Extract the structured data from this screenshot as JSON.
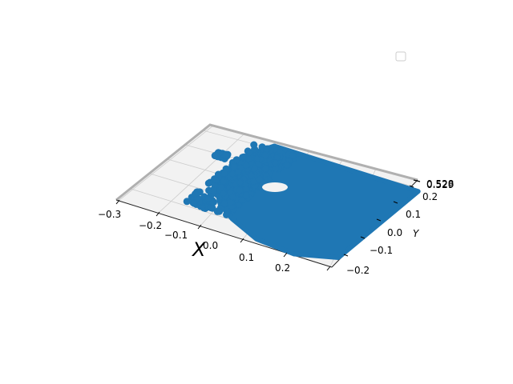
{
  "chart_data": {
    "type": "scatter",
    "projection": "3d",
    "title": "",
    "xlabel": "X",
    "ylabel": "Y",
    "zlabel": "",
    "x_ticks": [
      "−0.3",
      "−0.2",
      "−0.1",
      "0.0",
      "0.1",
      "0.2"
    ],
    "x_tick_values": [
      -0.3,
      -0.2,
      -0.1,
      0.0,
      0.1,
      0.2
    ],
    "y_ticks": [
      "−0.2",
      "−0.1",
      "0.0",
      "0.1",
      "0.2"
    ],
    "y_tick_values": [
      -0.2,
      -0.1,
      0.0,
      0.1,
      0.2
    ],
    "z_ticks": [
      "0.528",
      "0.529"
    ],
    "xlim": [
      -0.3,
      0.3
    ],
    "ylim": [
      -0.25,
      0.25
    ],
    "grid": true,
    "legend": {
      "placement": "upper-right",
      "entries": []
    },
    "series": [
      {
        "color": "#1f77b4",
        "marker": "o",
        "description_points_approx": "dense point cloud covering most of the X-Y plane with a small hole near x=0.05, y=0.12 and a small blob near x=-0.2, y=0.12",
        "count_estimate": "thousands"
      }
    ]
  },
  "colors": {
    "series": "#1f77b4",
    "pane": "#f2f2f2",
    "grid": "#cccccc",
    "axis_line": "#999999"
  }
}
